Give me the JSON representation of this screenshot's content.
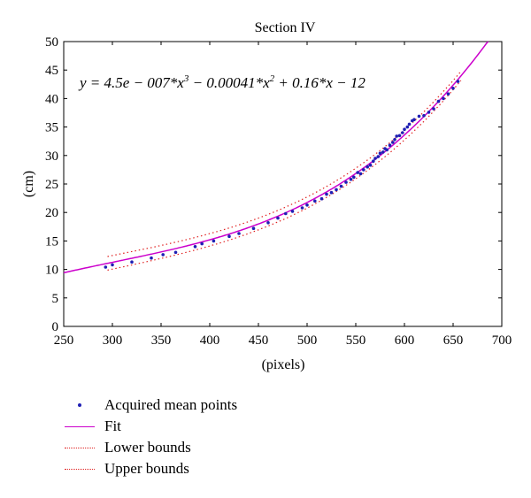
{
  "chart_data": {
    "type": "scatter",
    "title": "Section IV",
    "xlabel": "(pixels)",
    "ylabel": "(cm)",
    "xlim": [
      250,
      700
    ],
    "ylim": [
      0,
      50
    ],
    "xticks": [
      "250",
      "300",
      "350",
      "400",
      "450",
      "500",
      "550",
      "600",
      "650",
      "700"
    ],
    "yticks": [
      "0",
      "5",
      "10",
      "15",
      "20",
      "25",
      "30",
      "35",
      "40",
      "45",
      "50"
    ],
    "equation": {
      "prefix": "y = 4.5e − 007*x",
      "exp1": "3",
      "mid": " − 0.00041*x",
      "exp2": "2",
      "suffix": " + 0.16*x − 12"
    },
    "fit": {
      "a3": 4.5e-07,
      "a2": -0.00041,
      "a1": 0.16,
      "a0": -12,
      "x_range": [
        250,
        686
      ]
    },
    "bounds_x_range": [
      295,
      660
    ],
    "bounds_offset_cm": [
      1.2,
      0.8
    ],
    "points": {
      "x": [
        293,
        300,
        320,
        340,
        352,
        365,
        385,
        392,
        404,
        420,
        430,
        445,
        460,
        470,
        478,
        485,
        495,
        500,
        508,
        515,
        520,
        525,
        530,
        535,
        540,
        545,
        548,
        552,
        555,
        558,
        562,
        565,
        568,
        570,
        573,
        575,
        578,
        580,
        582,
        585,
        588,
        590,
        592,
        595,
        598,
        600,
        603,
        605,
        608,
        610,
        615,
        620,
        625,
        630,
        635,
        640,
        645,
        650,
        655
      ],
      "y": [
        10.4,
        10.8,
        11.3,
        12.0,
        12.6,
        13.0,
        14.0,
        14.5,
        15.0,
        15.8,
        16.3,
        17.2,
        18.2,
        19.0,
        19.8,
        20.2,
        20.8,
        21.3,
        22.0,
        22.4,
        23.2,
        23.5,
        24.0,
        24.6,
        25.3,
        25.8,
        26.2,
        27.0,
        26.8,
        27.5,
        28.0,
        28.3,
        29.0,
        29.5,
        29.8,
        30.4,
        30.6,
        31.2,
        31.0,
        31.8,
        32.3,
        32.8,
        33.4,
        33.5,
        34.0,
        34.6,
        35.0,
        35.5,
        36.1,
        36.3,
        36.9,
        37.0,
        37.6,
        38.2,
        39.5,
        40.0,
        40.8,
        41.8,
        43.0
      ]
    },
    "legend": [
      {
        "name": "Acquired mean points",
        "style": "dots",
        "color": "#1f1fb4"
      },
      {
        "name": "Fit",
        "style": "line",
        "color": "#cc00cc"
      },
      {
        "name": "Lower bounds",
        "style": "dotted",
        "color": "#e02020"
      },
      {
        "name": "Upper bounds",
        "style": "dotted",
        "color": "#e02020"
      }
    ],
    "legend_placement": "below"
  }
}
